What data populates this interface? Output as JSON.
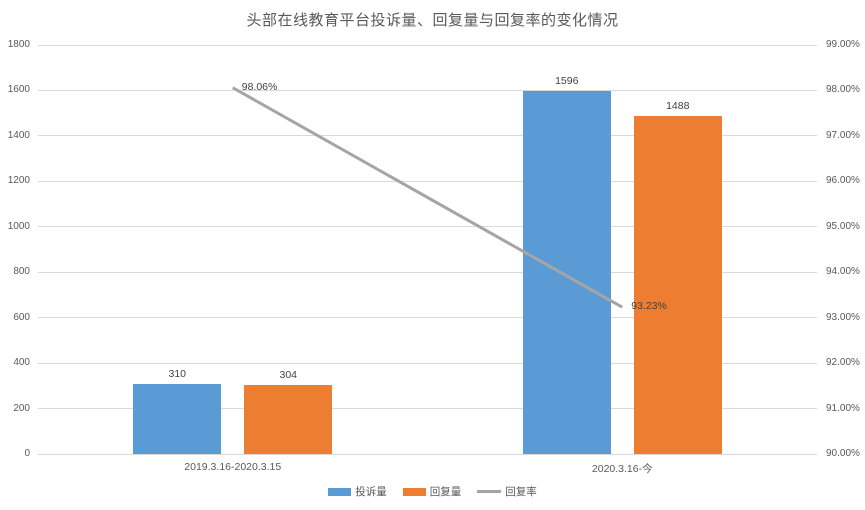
{
  "title": "头部在线教育平台投诉量、回复量与回复率的变化情况",
  "colors": {
    "complaints_bar": "#5B9BD5",
    "replies_bar": "#ED7D31",
    "reply_rate_line": "#A5A5A5",
    "gridline": "#D9D9D9",
    "tick_text": "#595959",
    "label_text": "#404040",
    "background": "#FFFFFF"
  },
  "chart_data": {
    "type": "bar",
    "subtype": "bar-line-combo",
    "title": "头部在线教育平台投诉量、回复量与回复率的变化情况",
    "categories": [
      "2019.3.16-2020.3.15",
      "2020.3.16-今"
    ],
    "series": [
      {
        "name": "投诉量",
        "type": "bar",
        "axis": "left",
        "color": "#5B9BD5",
        "values": [
          310,
          1596
        ],
        "value_labels": [
          "310",
          "1596"
        ]
      },
      {
        "name": "回复量",
        "type": "bar",
        "axis": "left",
        "color": "#ED7D31",
        "values": [
          304,
          1488
        ],
        "value_labels": [
          "304",
          "1488"
        ]
      },
      {
        "name": "回复率",
        "type": "line",
        "axis": "right",
        "color": "#A5A5A5",
        "values": [
          98.06,
          93.23
        ],
        "value_labels": [
          "98.06%",
          "93.23%"
        ]
      }
    ],
    "left_axis": {
      "min": 0,
      "max": 1800,
      "step": 200,
      "tick_labels": [
        "1800",
        "1600",
        "1400",
        "1200",
        "1000",
        "800",
        "600",
        "400",
        "200",
        "0"
      ]
    },
    "right_axis": {
      "min": 90,
      "max": 99,
      "step": 1,
      "tick_labels": [
        "99.00%",
        "98.00%",
        "97.00%",
        "96.00%",
        "95.00%",
        "94.00%",
        "93.00%",
        "92.00%",
        "91.00%",
        "90.00%"
      ]
    },
    "grid": true,
    "legend_position": "bottom",
    "legend": [
      "投诉量",
      "回复量",
      "回复率"
    ]
  }
}
